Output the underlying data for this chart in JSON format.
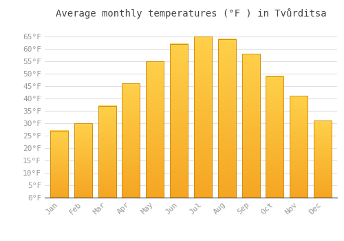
{
  "title": "Average monthly temperatures (°F ) in Tvůrditsa",
  "months": [
    "Jan",
    "Feb",
    "Mar",
    "Apr",
    "May",
    "Jun",
    "Jul",
    "Aug",
    "Sep",
    "Oct",
    "Nov",
    "Dec"
  ],
  "values": [
    27,
    30,
    37,
    46,
    55,
    62,
    65,
    64,
    58,
    49,
    41,
    31
  ],
  "bar_color_top": "#FFD04A",
  "bar_color_bottom": "#F5A623",
  "bar_edge_color": "#C8870A",
  "background_color": "#FFFFFF",
  "grid_color": "#E0E0E0",
  "ylim": [
    0,
    70
  ],
  "yticks": [
    0,
    5,
    10,
    15,
    20,
    25,
    30,
    35,
    40,
    45,
    50,
    55,
    60,
    65
  ],
  "title_fontsize": 10,
  "tick_fontsize": 8,
  "tick_color": "#999999",
  "bar_width": 0.75
}
